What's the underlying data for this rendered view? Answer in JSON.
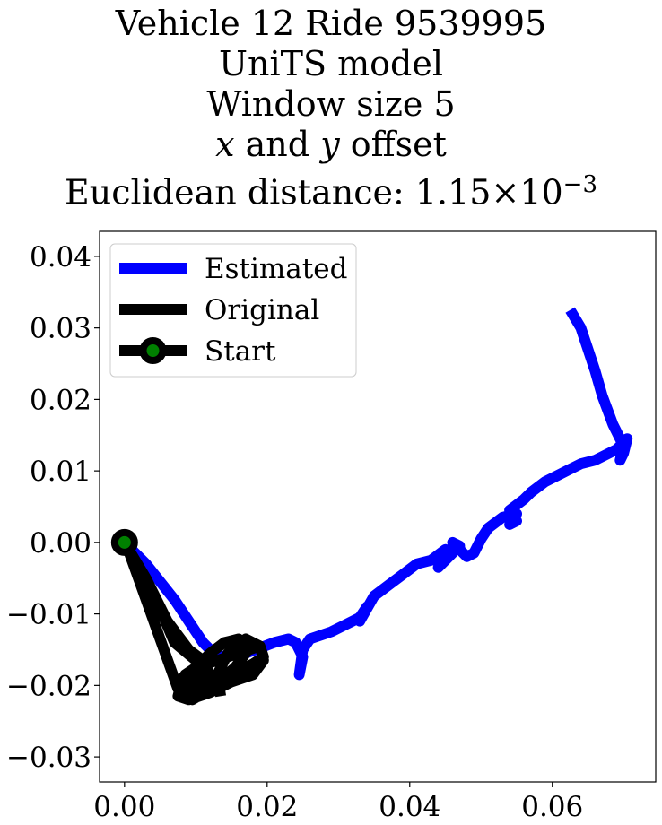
{
  "title": {
    "line1": "Vehicle 12 Ride 9539995",
    "line2": "UniTS model",
    "line3": "Window size 5",
    "line4_x": "x",
    "line4_mid": " and ",
    "line4_y": "y",
    "line4_end": " offset",
    "line5_prefix": "Euclidean distance: 1.15",
    "line5_times": "×",
    "line5_base": "10",
    "line5_exp": "−3"
  },
  "chart_data": {
    "type": "line",
    "xlim": [
      -0.0035,
      0.0745
    ],
    "ylim": [
      -0.0335,
      0.0435
    ],
    "grid": false,
    "legend_position": "upper-left",
    "x_ticks": [
      {
        "value": 0.0,
        "label": "0.00"
      },
      {
        "value": 0.02,
        "label": "0.02"
      },
      {
        "value": 0.04,
        "label": "0.04"
      },
      {
        "value": 0.06,
        "label": "0.06"
      }
    ],
    "y_ticks": [
      {
        "value": 0.04,
        "label": "0.04"
      },
      {
        "value": 0.03,
        "label": "0.03"
      },
      {
        "value": 0.02,
        "label": "0.02"
      },
      {
        "value": 0.01,
        "label": "0.01"
      },
      {
        "value": 0.0,
        "label": "0.00"
      },
      {
        "value": -0.01,
        "label": "−0.01"
      },
      {
        "value": -0.02,
        "label": "−0.02"
      },
      {
        "value": -0.03,
        "label": "−0.03"
      }
    ],
    "series": [
      {
        "name": "Estimated",
        "color": "#0000ff",
        "x": [
          0.0,
          0.003,
          0.007,
          0.011,
          0.013,
          0.017,
          0.021,
          0.023,
          0.024,
          0.025,
          0.0245,
          0.025,
          0.026,
          0.029,
          0.033,
          0.034,
          0.033,
          0.035,
          0.037,
          0.039,
          0.041,
          0.043,
          0.045,
          0.046,
          0.044,
          0.045,
          0.047,
          0.046,
          0.048,
          0.049,
          0.05,
          0.051,
          0.053,
          0.055,
          0.054,
          0.055,
          0.054,
          0.056,
          0.057,
          0.059,
          0.061,
          0.062,
          0.064,
          0.066,
          0.069,
          0.0705,
          0.07,
          0.0695,
          0.07,
          0.0685,
          0.067,
          0.066,
          0.065,
          0.064,
          0.0625
        ],
        "y": [
          0.0,
          -0.003,
          -0.008,
          -0.014,
          -0.016,
          -0.0155,
          -0.014,
          -0.0135,
          -0.014,
          -0.016,
          -0.0185,
          -0.015,
          -0.0135,
          -0.0125,
          -0.0105,
          -0.009,
          -0.011,
          -0.0075,
          -0.006,
          -0.0045,
          -0.003,
          -0.0025,
          -0.001,
          -0.0015,
          -0.0035,
          -0.002,
          -0.0005,
          0.0,
          -0.002,
          -0.0015,
          0.0005,
          0.002,
          0.0035,
          0.004,
          0.0025,
          0.003,
          0.0045,
          0.006,
          0.007,
          0.0085,
          0.0095,
          0.01,
          0.011,
          0.0115,
          0.013,
          0.0145,
          0.0125,
          0.0115,
          0.0135,
          0.0165,
          0.0205,
          0.024,
          0.027,
          0.03,
          0.0325
        ]
      },
      {
        "name": "Original",
        "color": "#000000",
        "x": [
          0.0,
          0.003,
          0.006,
          0.009,
          0.011,
          0.012,
          0.011,
          0.009,
          0.008,
          0.0075,
          0.0085,
          0.01,
          0.013,
          0.016,
          0.019,
          0.0195,
          0.018,
          0.015,
          0.012,
          0.009,
          0.0075,
          0.008,
          0.01,
          0.012,
          0.014,
          0.016,
          0.017,
          0.0155,
          0.013,
          0.0105,
          0.0085,
          0.0075,
          0.0005,
          0.004,
          0.007,
          0.01,
          0.011,
          0.0095,
          0.0085,
          0.0095,
          0.012,
          0.015,
          0.018,
          0.0195,
          0.019,
          0.017,
          0.0145,
          0.013,
          0.0135
        ],
        "y": [
          0.0,
          -0.005,
          -0.011,
          -0.015,
          -0.0165,
          -0.0185,
          -0.0205,
          -0.0215,
          -0.021,
          -0.02,
          -0.0185,
          -0.0175,
          -0.0165,
          -0.0155,
          -0.0145,
          -0.0165,
          -0.0185,
          -0.0195,
          -0.021,
          -0.022,
          -0.0215,
          -0.0195,
          -0.0175,
          -0.0155,
          -0.014,
          -0.0135,
          -0.0155,
          -0.0175,
          -0.0195,
          -0.0205,
          -0.0215,
          -0.0205,
          -0.001,
          -0.007,
          -0.014,
          -0.0165,
          -0.0185,
          -0.02,
          -0.0215,
          -0.022,
          -0.0205,
          -0.0185,
          -0.017,
          -0.016,
          -0.0145,
          -0.0135,
          -0.0155,
          -0.0185,
          -0.0215
        ]
      }
    ],
    "start_marker": {
      "name": "Start",
      "x": 0.0,
      "y": 0.0,
      "fill_color": "#008000",
      "edge_color": "#000000"
    }
  }
}
